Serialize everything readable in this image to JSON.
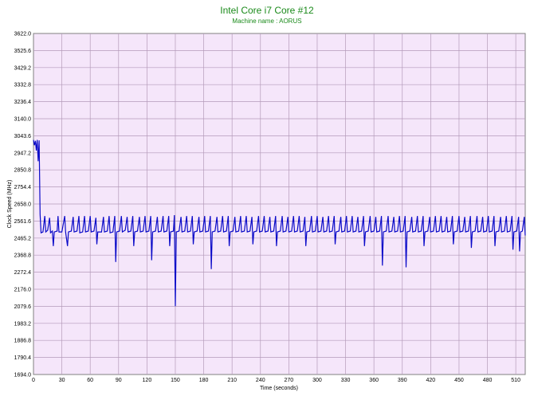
{
  "chart_data": {
    "type": "line",
    "title": "Intel Core i7 Core #12",
    "subtitle": "Machine name : AORUS",
    "xlabel": "Time (seconds)",
    "ylabel": "Clock Speed (MHz)",
    "xlim": [
      0,
      520
    ],
    "ylim": [
      1694.0,
      3622.0
    ],
    "x_ticks": [
      "0",
      "30",
      "60",
      "90",
      "120",
      "150",
      "180",
      "210",
      "240",
      "270",
      "300",
      "330",
      "360",
      "390",
      "420",
      "450",
      "480",
      "510"
    ],
    "y_ticks": [
      "1694.0",
      "1790.4",
      "1886.8",
      "1983.2",
      "2079.6",
      "2176.0",
      "2272.4",
      "2368.8",
      "2465.2",
      "2561.6",
      "2658.0",
      "2754.4",
      "2850.8",
      "2947.2",
      "3043.6",
      "3140.0",
      "3236.4",
      "3332.8",
      "3429.2",
      "3525.6",
      "3622.0"
    ],
    "grid": true,
    "colors": {
      "plot_background": "#f5e6fa",
      "grid": "#b49ab9",
      "line": "#0a0ac8",
      "title": "#1a8a1a"
    },
    "series": [
      {
        "values": [
          [
            0,
            3020
          ],
          [
            1,
            2990
          ],
          [
            2,
            3015
          ],
          [
            3,
            2960
          ],
          [
            4,
            3020
          ],
          [
            5,
            2900
          ],
          [
            6,
            3018
          ],
          [
            7,
            2600
          ],
          [
            8,
            2495
          ],
          [
            10,
            2500
          ],
          [
            12,
            2590
          ],
          [
            13,
            2500
          ],
          [
            15,
            2510
          ],
          [
            17,
            2580
          ],
          [
            18,
            2495
          ],
          [
            20,
            2505
          ],
          [
            21,
            2420
          ],
          [
            22,
            2500
          ],
          [
            25,
            2505
          ],
          [
            26,
            2590
          ],
          [
            27,
            2500
          ],
          [
            30,
            2500
          ],
          [
            33,
            2590
          ],
          [
            34,
            2500
          ],
          [
            36,
            2420
          ],
          [
            37,
            2500
          ],
          [
            40,
            2505
          ],
          [
            42,
            2585
          ],
          [
            43,
            2500
          ],
          [
            46,
            2505
          ],
          [
            48,
            2590
          ],
          [
            49,
            2495
          ],
          [
            52,
            2500
          ],
          [
            54,
            2590
          ],
          [
            55,
            2500
          ],
          [
            58,
            2505
          ],
          [
            60,
            2590
          ],
          [
            61,
            2500
          ],
          [
            64,
            2505
          ],
          [
            66,
            2580
          ],
          [
            67,
            2430
          ],
          [
            68,
            2500
          ],
          [
            72,
            2500
          ],
          [
            74,
            2585
          ],
          [
            75,
            2500
          ],
          [
            78,
            2505
          ],
          [
            80,
            2590
          ],
          [
            81,
            2495
          ],
          [
            84,
            2500
          ],
          [
            86,
            2590
          ],
          [
            87,
            2330
          ],
          [
            88,
            2500
          ],
          [
            91,
            2505
          ],
          [
            93,
            2590
          ],
          [
            94,
            2500
          ],
          [
            97,
            2510
          ],
          [
            99,
            2585
          ],
          [
            100,
            2500
          ],
          [
            103,
            2505
          ],
          [
            105,
            2590
          ],
          [
            106,
            2420
          ],
          [
            107,
            2500
          ],
          [
            110,
            2505
          ],
          [
            112,
            2585
          ],
          [
            113,
            2500
          ],
          [
            116,
            2505
          ],
          [
            118,
            2590
          ],
          [
            119,
            2500
          ],
          [
            122,
            2505
          ],
          [
            124,
            2590
          ],
          [
            125,
            2340
          ],
          [
            126,
            2500
          ],
          [
            129,
            2505
          ],
          [
            131,
            2585
          ],
          [
            132,
            2500
          ],
          [
            135,
            2505
          ],
          [
            137,
            2590
          ],
          [
            138,
            2500
          ],
          [
            141,
            2505
          ],
          [
            143,
            2590
          ],
          [
            144,
            2420
          ],
          [
            145,
            2500
          ],
          [
            148,
            2505
          ],
          [
            149,
            2595
          ],
          [
            150,
            2080
          ],
          [
            151,
            2500
          ],
          [
            154,
            2505
          ],
          [
            156,
            2585
          ],
          [
            157,
            2500
          ],
          [
            160,
            2505
          ],
          [
            162,
            2590
          ],
          [
            163,
            2500
          ],
          [
            166,
            2505
          ],
          [
            168,
            2590
          ],
          [
            169,
            2430
          ],
          [
            170,
            2500
          ],
          [
            173,
            2505
          ],
          [
            175,
            2585
          ],
          [
            176,
            2500
          ],
          [
            179,
            2505
          ],
          [
            181,
            2590
          ],
          [
            182,
            2500
          ],
          [
            185,
            2505
          ],
          [
            187,
            2590
          ],
          [
            188,
            2290
          ],
          [
            189,
            2500
          ],
          [
            192,
            2505
          ],
          [
            194,
            2585
          ],
          [
            195,
            2500
          ],
          [
            198,
            2505
          ],
          [
            200,
            2590
          ],
          [
            201,
            2500
          ],
          [
            204,
            2505
          ],
          [
            206,
            2590
          ],
          [
            207,
            2420
          ],
          [
            208,
            2500
          ],
          [
            211,
            2505
          ],
          [
            213,
            2585
          ],
          [
            214,
            2500
          ],
          [
            217,
            2505
          ],
          [
            219,
            2590
          ],
          [
            220,
            2500
          ],
          [
            223,
            2505
          ],
          [
            225,
            2590
          ],
          [
            226,
            2500
          ],
          [
            229,
            2505
          ],
          [
            231,
            2585
          ],
          [
            232,
            2430
          ],
          [
            233,
            2500
          ],
          [
            236,
            2505
          ],
          [
            238,
            2590
          ],
          [
            239,
            2500
          ],
          [
            242,
            2505
          ],
          [
            244,
            2590
          ],
          [
            245,
            2500
          ],
          [
            248,
            2505
          ],
          [
            250,
            2585
          ],
          [
            251,
            2500
          ],
          [
            254,
            2505
          ],
          [
            256,
            2590
          ],
          [
            257,
            2420
          ],
          [
            258,
            2500
          ],
          [
            261,
            2505
          ],
          [
            263,
            2590
          ],
          [
            264,
            2500
          ],
          [
            267,
            2505
          ],
          [
            269,
            2585
          ],
          [
            270,
            2500
          ],
          [
            273,
            2505
          ],
          [
            275,
            2590
          ],
          [
            276,
            2500
          ],
          [
            279,
            2505
          ],
          [
            281,
            2590
          ],
          [
            282,
            2500
          ],
          [
            285,
            2505
          ],
          [
            287,
            2585
          ],
          [
            288,
            2420
          ],
          [
            289,
            2500
          ],
          [
            292,
            2505
          ],
          [
            294,
            2590
          ],
          [
            295,
            2500
          ],
          [
            298,
            2505
          ],
          [
            300,
            2590
          ],
          [
            301,
            2500
          ],
          [
            304,
            2505
          ],
          [
            306,
            2585
          ],
          [
            307,
            2500
          ],
          [
            310,
            2505
          ],
          [
            312,
            2590
          ],
          [
            313,
            2500
          ],
          [
            316,
            2505
          ],
          [
            318,
            2590
          ],
          [
            319,
            2430
          ],
          [
            320,
            2500
          ],
          [
            323,
            2505
          ],
          [
            325,
            2585
          ],
          [
            326,
            2500
          ],
          [
            329,
            2505
          ],
          [
            331,
            2590
          ],
          [
            332,
            2500
          ],
          [
            335,
            2505
          ],
          [
            337,
            2590
          ],
          [
            338,
            2500
          ],
          [
            341,
            2505
          ],
          [
            343,
            2585
          ],
          [
            344,
            2500
          ],
          [
            347,
            2505
          ],
          [
            349,
            2590
          ],
          [
            350,
            2420
          ],
          [
            351,
            2500
          ],
          [
            354,
            2505
          ],
          [
            356,
            2590
          ],
          [
            357,
            2500
          ],
          [
            360,
            2505
          ],
          [
            362,
            2585
          ],
          [
            363,
            2500
          ],
          [
            366,
            2505
          ],
          [
            368,
            2590
          ],
          [
            369,
            2310
          ],
          [
            370,
            2500
          ],
          [
            373,
            2505
          ],
          [
            375,
            2590
          ],
          [
            376,
            2500
          ],
          [
            379,
            2505
          ],
          [
            381,
            2585
          ],
          [
            382,
            2500
          ],
          [
            385,
            2505
          ],
          [
            387,
            2590
          ],
          [
            388,
            2500
          ],
          [
            391,
            2505
          ],
          [
            393,
            2590
          ],
          [
            394,
            2300
          ],
          [
            395,
            2500
          ],
          [
            398,
            2505
          ],
          [
            400,
            2585
          ],
          [
            401,
            2500
          ],
          [
            404,
            2505
          ],
          [
            406,
            2590
          ],
          [
            407,
            2500
          ],
          [
            410,
            2505
          ],
          [
            412,
            2590
          ],
          [
            413,
            2420
          ],
          [
            414,
            2500
          ],
          [
            417,
            2505
          ],
          [
            419,
            2585
          ],
          [
            420,
            2500
          ],
          [
            423,
            2505
          ],
          [
            425,
            2590
          ],
          [
            426,
            2500
          ],
          [
            429,
            2505
          ],
          [
            431,
            2590
          ],
          [
            432,
            2500
          ],
          [
            435,
            2505
          ],
          [
            437,
            2585
          ],
          [
            438,
            2500
          ],
          [
            441,
            2505
          ],
          [
            443,
            2590
          ],
          [
            444,
            2430
          ],
          [
            445,
            2500
          ],
          [
            448,
            2505
          ],
          [
            450,
            2590
          ],
          [
            451,
            2500
          ],
          [
            454,
            2505
          ],
          [
            456,
            2585
          ],
          [
            457,
            2500
          ],
          [
            460,
            2505
          ],
          [
            462,
            2590
          ],
          [
            463,
            2410
          ],
          [
            464,
            2500
          ],
          [
            467,
            2505
          ],
          [
            469,
            2590
          ],
          [
            470,
            2500
          ],
          [
            473,
            2505
          ],
          [
            475,
            2585
          ],
          [
            476,
            2500
          ],
          [
            479,
            2505
          ],
          [
            481,
            2590
          ],
          [
            482,
            2500
          ],
          [
            485,
            2505
          ],
          [
            487,
            2590
          ],
          [
            488,
            2420
          ],
          [
            489,
            2500
          ],
          [
            492,
            2505
          ],
          [
            494,
            2585
          ],
          [
            495,
            2500
          ],
          [
            498,
            2505
          ],
          [
            500,
            2590
          ],
          [
            501,
            2500
          ],
          [
            504,
            2505
          ],
          [
            506,
            2590
          ],
          [
            507,
            2400
          ],
          [
            508,
            2500
          ],
          [
            511,
            2505
          ],
          [
            513,
            2585
          ],
          [
            514,
            2390
          ],
          [
            515,
            2500
          ],
          [
            517,
            2505
          ],
          [
            519,
            2585
          ],
          [
            520,
            2480
          ]
        ]
      }
    ]
  }
}
